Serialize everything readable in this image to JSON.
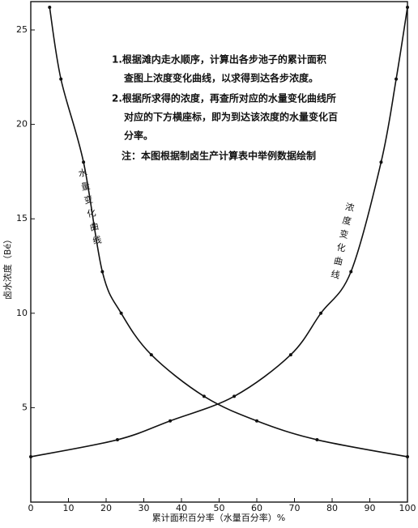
{
  "chart_data": {
    "type": "line",
    "x_label": "累计面积百分率（水量百分率）%",
    "y_label": "卤水浓度（Bé）",
    "xlim": [
      0,
      100
    ],
    "xticks": [
      0,
      10,
      20,
      30,
      40,
      50,
      60,
      70,
      80,
      90,
      100
    ],
    "ylim": [
      0,
      26.5
    ],
    "yticks": [
      5,
      10,
      15,
      20,
      25
    ],
    "series": [
      {
        "name": "浓度变化曲线",
        "color": "#111111",
        "x": [
          0,
          23,
          37,
          54,
          69,
          77,
          85,
          93,
          97,
          100
        ],
        "values": [
          2.4,
          3.3,
          4.3,
          5.6,
          7.8,
          10,
          12.2,
          18,
          22.4,
          26.2
        ]
      },
      {
        "name": "水量变化曲线",
        "color": "#111111",
        "x": [
          5,
          8,
          14,
          19,
          24,
          32,
          46,
          60,
          76,
          100
        ],
        "values": [
          26.2,
          22.4,
          18,
          12.2,
          10,
          7.8,
          5.6,
          4.3,
          3.3,
          2.4
        ]
      }
    ],
    "notes": [
      [
        "1.根据滩内走水顺序，计算出各步池子的累计面积",
        "查图上浓度变化曲线，以求得到达各步浓度。"
      ],
      [
        "2.根据所求得的浓度，再查所对应的水量变化曲线所",
        "对应的下方横座标，即为到达该浓度的水量变化百",
        "分率。"
      ],
      [
        "注：本图根据制卤生产计算表中举例数据绘制"
      ]
    ]
  }
}
